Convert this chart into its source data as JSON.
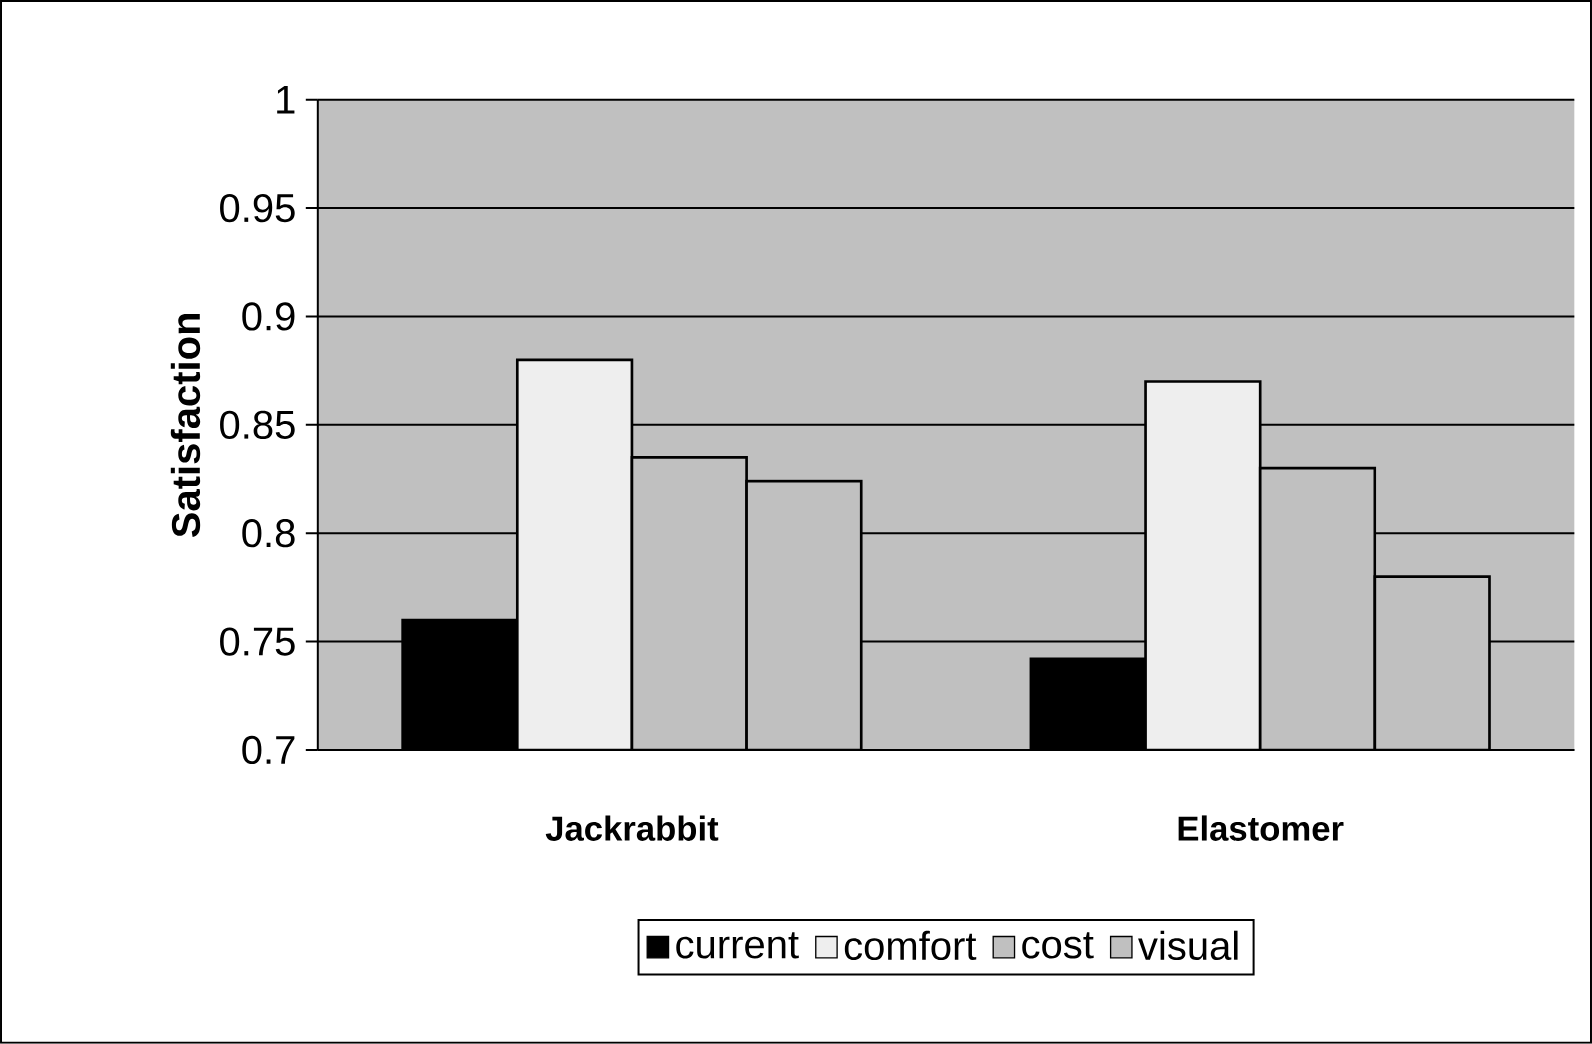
{
  "chart_data": {
    "type": "bar",
    "ylabel": "Satisfaction",
    "categories": [
      "Jackrabbit",
      "Elastomer"
    ],
    "series": [
      {
        "name": "current",
        "color": "#000000",
        "values": [
          0.76,
          0.742
        ]
      },
      {
        "name": "comfort",
        "color": "#eeeeee",
        "values": [
          0.88,
          0.87
        ]
      },
      {
        "name": "cost",
        "color": "#c0c0c0",
        "values": [
          0.835,
          0.83
        ]
      },
      {
        "name": "visual",
        "color": "#c0c0c0",
        "values": [
          0.824,
          0.78
        ]
      }
    ],
    "ylim": [
      0.7,
      1
    ],
    "yticks": [
      0.7,
      0.75,
      0.8,
      0.85,
      0.9,
      0.95,
      1
    ],
    "grid": "y",
    "legend": "bottom"
  }
}
